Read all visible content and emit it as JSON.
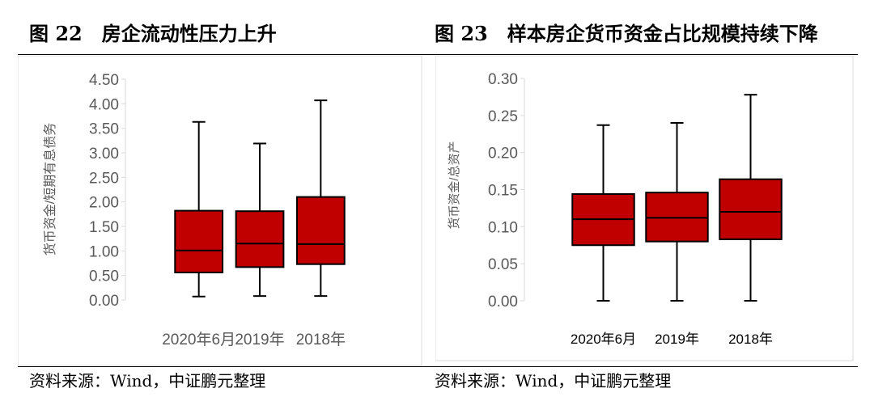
{
  "figures": [
    {
      "title": "图 22　房企流动性压力上升",
      "source": "资料来源：Wind，中证鹏元整理"
    },
    {
      "title": "图 23　样本房企货币资金占比规模持续下降",
      "source": "资料来源：Wind，中证鹏元整理"
    }
  ],
  "chart_data": [
    {
      "type": "box",
      "title": "",
      "ylabel": "货币资金/短期有息债务",
      "ylim": [
        0,
        4.5
      ],
      "yticks": [
        "0.00",
        "0.50",
        "1.00",
        "1.50",
        "2.00",
        "2.50",
        "3.00",
        "3.50",
        "4.00",
        "4.50"
      ],
      "categories": [
        "2020年6月",
        "2019年",
        "2018年"
      ],
      "grid": false,
      "box_color": "#C00000",
      "boxes": [
        {
          "min": 0.07,
          "q1": 0.56,
          "median": 1.01,
          "q3": 1.82,
          "max": 3.63
        },
        {
          "min": 0.08,
          "q1": 0.67,
          "median": 1.15,
          "q3": 1.81,
          "max": 3.19
        },
        {
          "min": 0.08,
          "q1": 0.73,
          "median": 1.14,
          "q3": 2.1,
          "max": 4.07
        }
      ]
    },
    {
      "type": "box",
      "title": "",
      "ylabel": "货币资金/总资产",
      "ylim": [
        0,
        0.3
      ],
      "yticks": [
        "0.00",
        "0.05",
        "0.10",
        "0.15",
        "0.20",
        "0.25",
        "0.30"
      ],
      "categories": [
        "2020年6月",
        "2019年",
        "2018年"
      ],
      "grid": false,
      "box_color": "#C00000",
      "boxes": [
        {
          "min": 0.0,
          "q1": 0.075,
          "median": 0.11,
          "q3": 0.144,
          "max": 0.237
        },
        {
          "min": 0.0,
          "q1": 0.08,
          "median": 0.112,
          "q3": 0.146,
          "max": 0.24
        },
        {
          "min": 0.0,
          "q1": 0.083,
          "median": 0.12,
          "q3": 0.164,
          "max": 0.278
        }
      ]
    }
  ]
}
